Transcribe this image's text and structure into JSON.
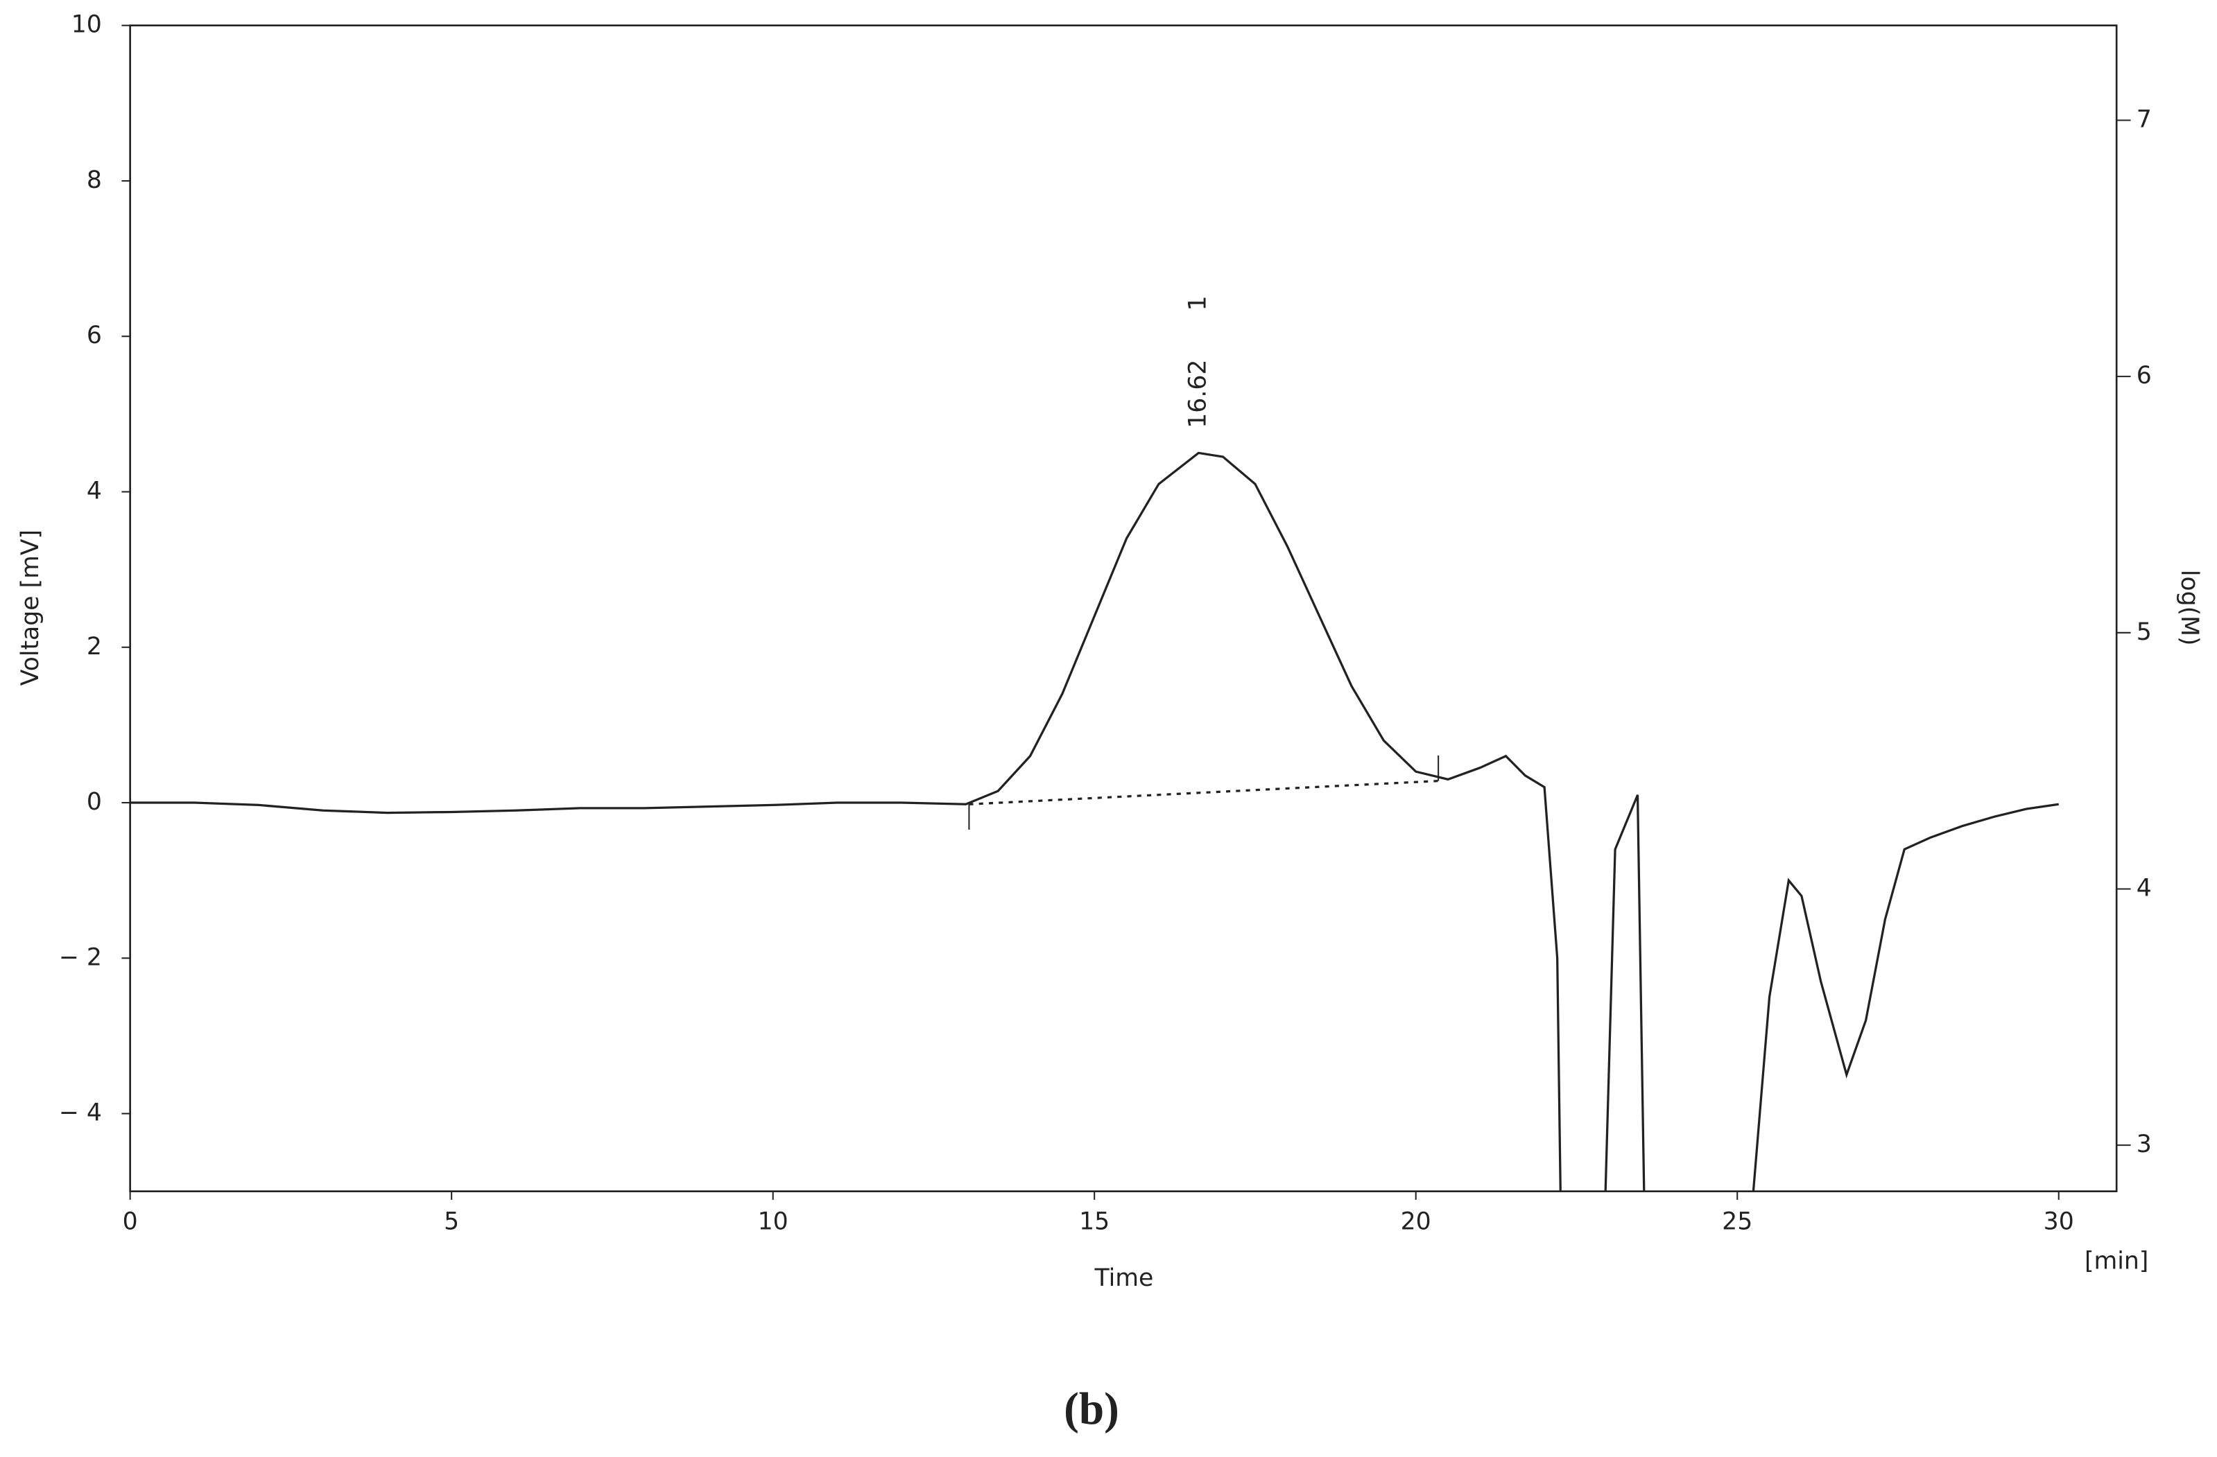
{
  "chart_data": {
    "type": "line",
    "xlabel": "Time",
    "xunit": "[min]",
    "ylabel": "Voltage [mV]",
    "y2label": "log(M)",
    "caption": "(b)",
    "xlim": [
      0,
      30.9
    ],
    "xticks": [
      0,
      5,
      10,
      15,
      20,
      25,
      30
    ],
    "ylim": [
      -5,
      10
    ],
    "yticks": [
      {
        "value": -4,
        "label": "− 4"
      },
      {
        "value": -2,
        "label": "− 2"
      },
      0,
      2,
      4,
      6,
      8,
      10
    ],
    "y2lim": [
      2.82,
      7.37
    ],
    "y2ticks": [
      3,
      4,
      5,
      6,
      7
    ],
    "x": [
      0,
      1,
      2,
      3,
      4,
      5,
      6,
      7,
      8,
      9,
      10,
      11,
      12,
      13,
      13.5,
      14,
      14.5,
      15,
      15.5,
      16,
      16.62,
      17,
      17.5,
      18,
      18.5,
      19,
      19.5,
      20,
      20.5,
      21,
      21.4,
      21.7,
      22,
      22.2,
      22.25,
      22.6,
      22.95,
      23.1,
      23.3,
      23.45,
      23.55,
      24.4,
      25.25,
      25.5,
      25.8,
      26,
      26.3,
      26.7,
      27,
      27.3,
      27.6,
      28,
      28.5,
      29,
      29.5,
      30
    ],
    "series": [
      {
        "name": "Voltage",
        "color": "#222222",
        "values": [
          0,
          0,
          -0.03,
          -0.1,
          -0.13,
          -0.12,
          -0.1,
          -0.07,
          -0.07,
          -0.05,
          -0.03,
          0,
          0,
          -0.02,
          0.15,
          0.6,
          1.4,
          2.4,
          3.4,
          4.1,
          4.5,
          4.45,
          4.1,
          3.3,
          2.4,
          1.5,
          0.8,
          0.4,
          0.3,
          0.45,
          0.6,
          0.35,
          0.2,
          -2,
          -5,
          null,
          -5,
          -0.6,
          -0.2,
          0.1,
          -5,
          null,
          -5,
          -2.5,
          -1,
          -1.2,
          -2.3,
          -3.5,
          -2.8,
          -1.5,
          -0.6,
          -0.45,
          -0.3,
          -0.18,
          -0.08,
          -0.02
        ]
      }
    ],
    "baseline": {
      "x": [
        13.05,
        20.35
      ],
      "values": [
        -0.02,
        0.28
      ]
    },
    "annotation": {
      "x": 16.62,
      "label": "16.62",
      "peak": "1"
    }
  }
}
